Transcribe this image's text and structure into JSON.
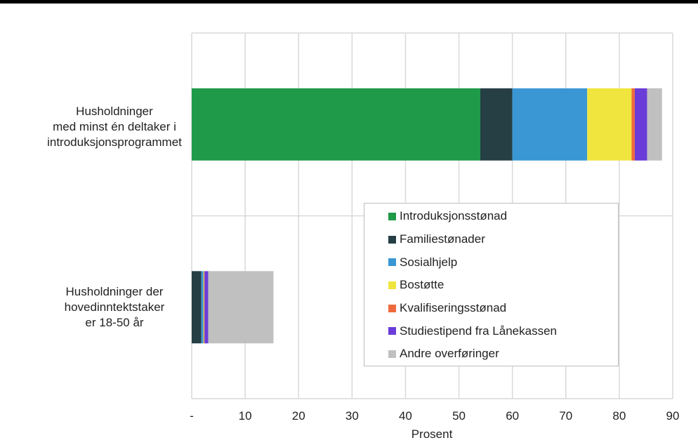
{
  "chart_data": {
    "type": "bar",
    "orientation": "horizontal",
    "stacked": true,
    "categories": [
      "Husholdninger med minst én deltaker i introduksjonsprogrammet",
      "Husholdninger der hovedinntektstaker er 18-50 år"
    ],
    "category_lines": [
      [
        "Husholdninger",
        "med minst én deltaker i",
        "introduksjonsprogrammet"
      ],
      [
        "Husholdninger der",
        "hovedinntektstaker",
        "er 18-50 år"
      ]
    ],
    "series": [
      {
        "name": "Introduksjonsstønad",
        "color": "#1f9a48",
        "values": [
          54.0,
          0.0
        ]
      },
      {
        "name": "Familiestønader",
        "color": "#253f45",
        "values": [
          6.0,
          1.8
        ]
      },
      {
        "name": "Sosialhjelp",
        "color": "#3a97d4",
        "values": [
          14.0,
          0.4
        ]
      },
      {
        "name": "Bostøtte",
        "color": "#f0e43e",
        "values": [
          8.3,
          0.1
        ]
      },
      {
        "name": "Kvalifiseringsstønad",
        "color": "#ee6a3d",
        "values": [
          0.6,
          0.1
        ]
      },
      {
        "name": "Studiestipend fra Lånekassen",
        "color": "#6a3dd8",
        "values": [
          2.3,
          0.7
        ]
      },
      {
        "name": "Andre overføringer",
        "color": "#c0c0c0",
        "values": [
          2.8,
          12.2
        ]
      }
    ],
    "xlabel": "Prosent",
    "ylabel": "",
    "title": "",
    "xlim": [
      0,
      90
    ],
    "x_ticks": [
      0,
      10,
      20,
      30,
      40,
      50,
      60,
      70,
      80,
      90
    ],
    "x_tick_labels": [
      "-",
      "10",
      "20",
      "30",
      "40",
      "50",
      "60",
      "70",
      "80",
      "90"
    ],
    "grid": true,
    "legend_position": "right-center, inside plot"
  }
}
